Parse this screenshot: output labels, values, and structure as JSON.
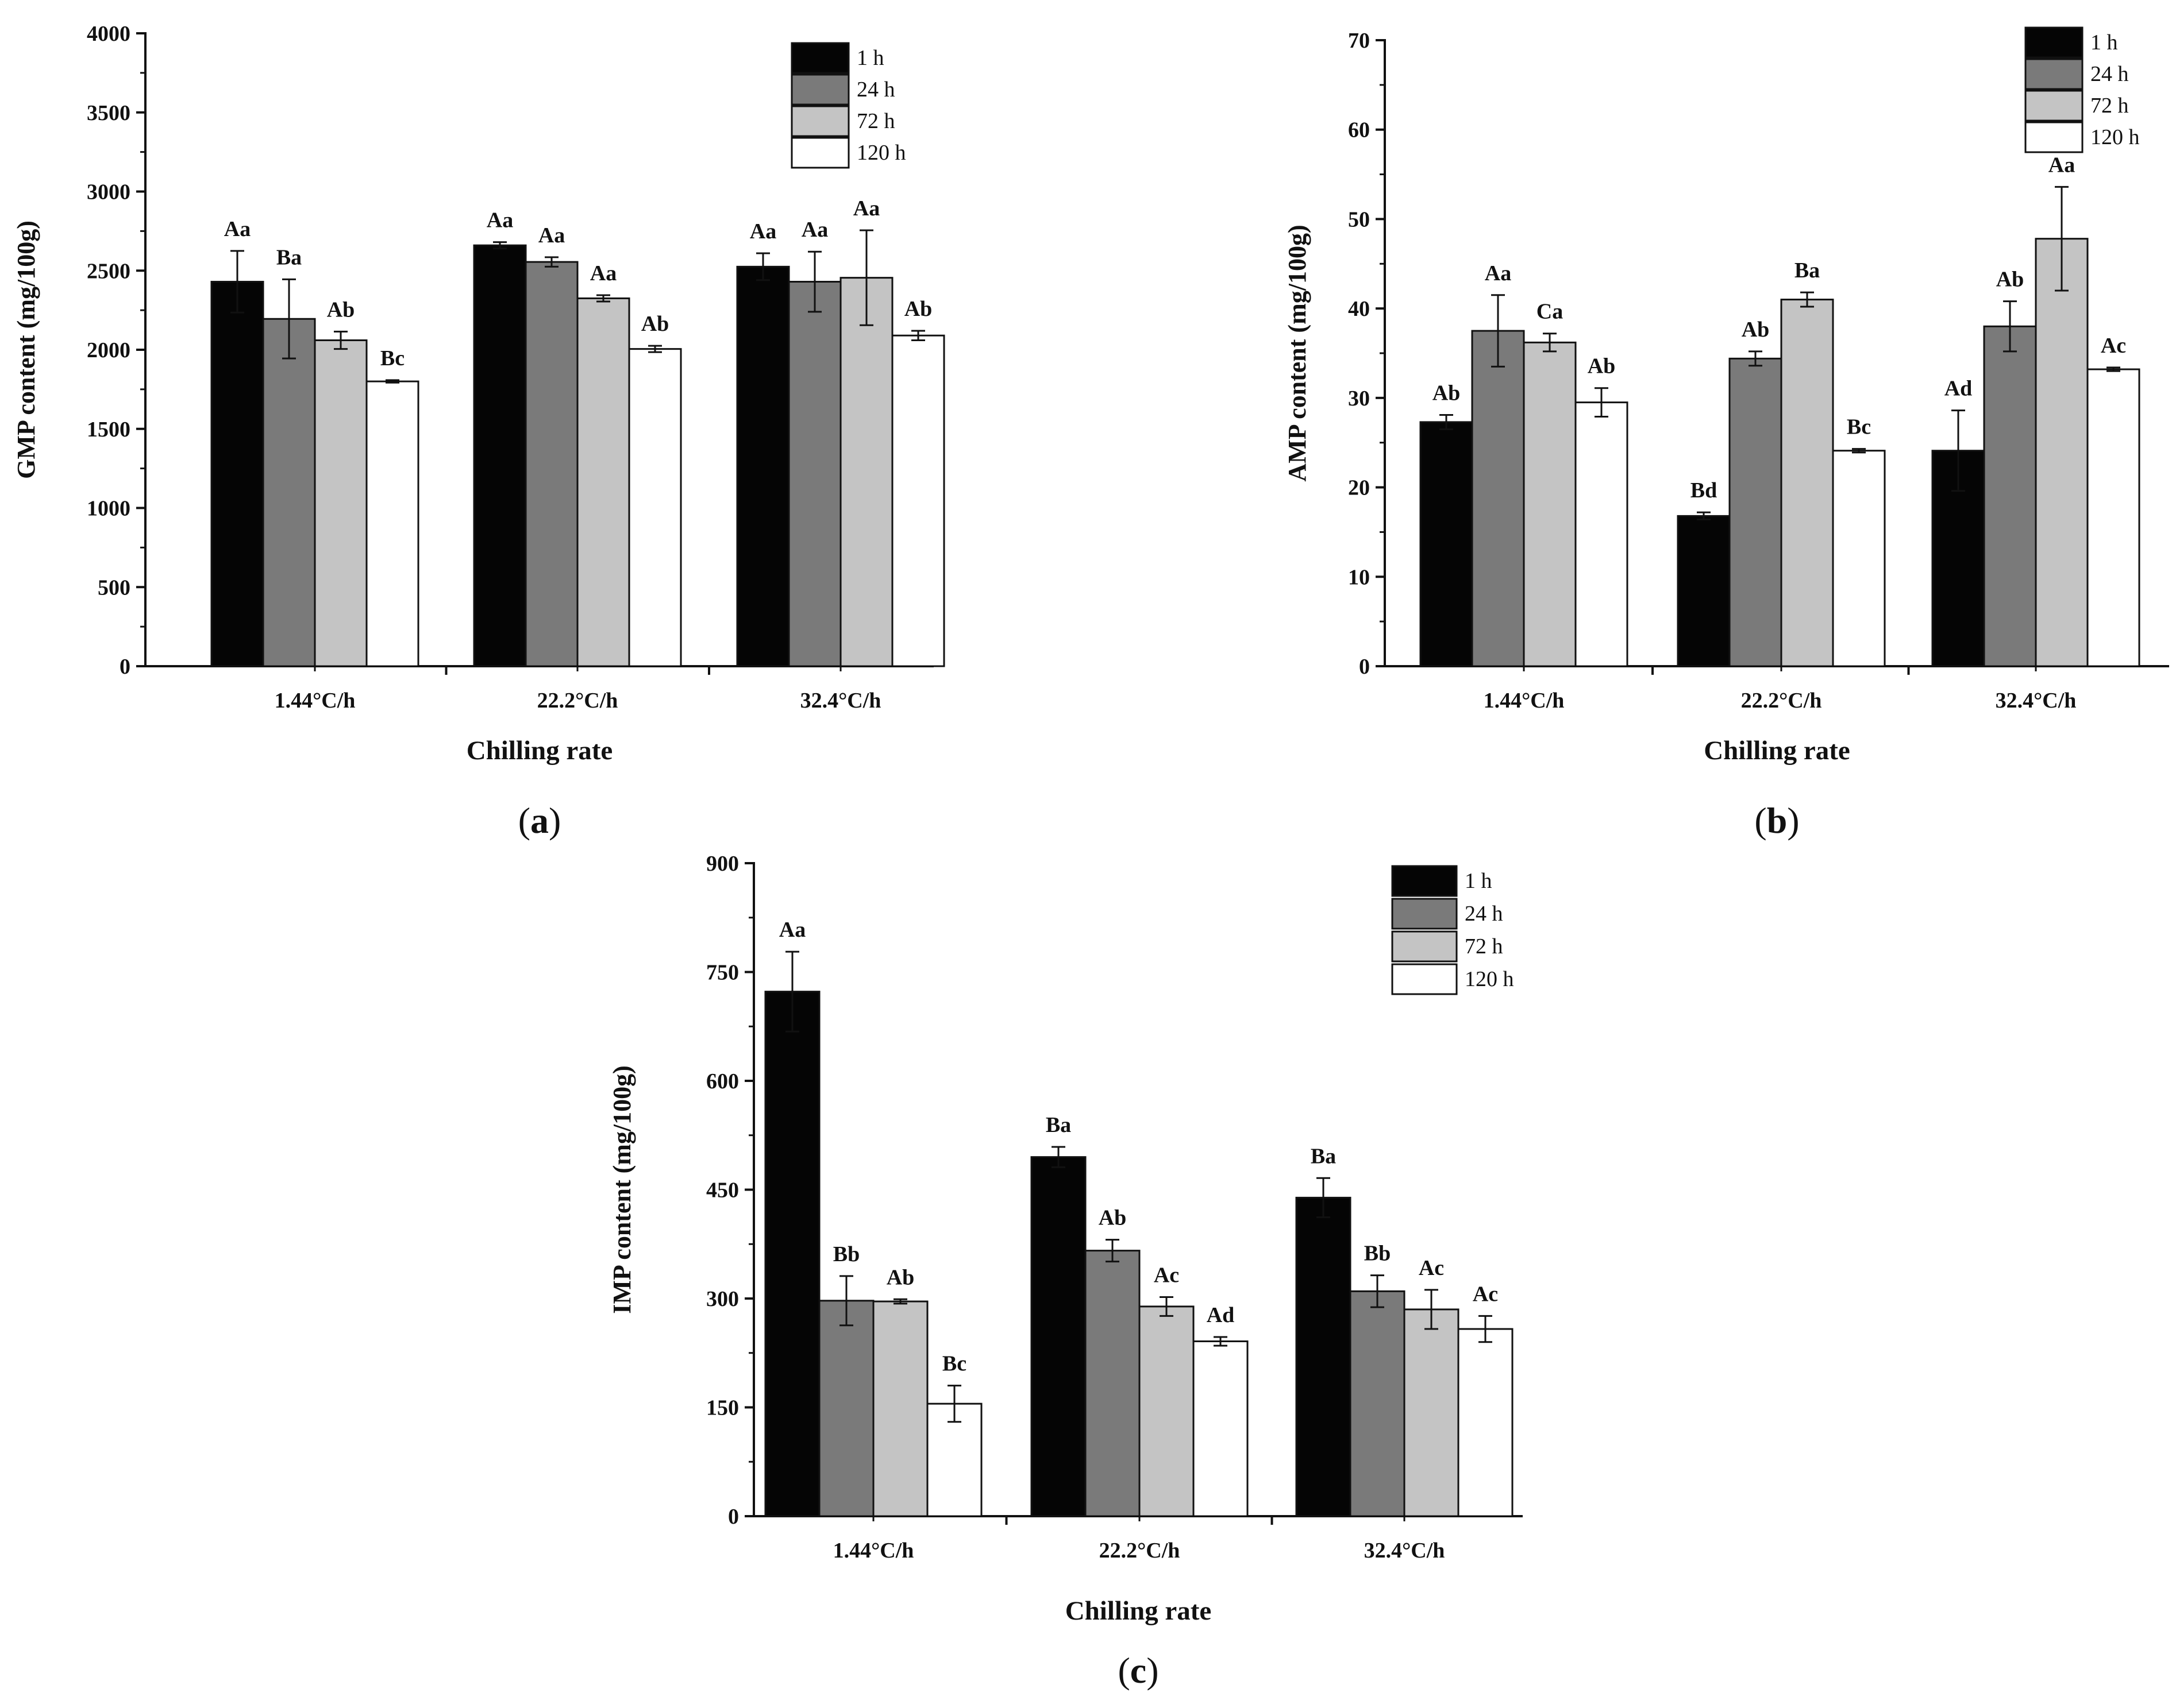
{
  "figure": {
    "x_axis_title": "Chilling rate",
    "legend_labels": [
      "1 h",
      "24 h",
      "72 h",
      "120 h"
    ],
    "series_colors": [
      "#050505",
      "#7a7a7a",
      "#c4c4c4",
      "#ffffff"
    ]
  },
  "chart_data": [
    {
      "panel": "a",
      "panel_label": {
        "open": "(",
        "letter": "a",
        "close": ")"
      },
      "type": "bar",
      "title": "",
      "xlabel": "Chilling rate",
      "ylabel": "GMP content (mg/100g)",
      "ylim": [
        0,
        4000
      ],
      "yticks": [
        0,
        500,
        1000,
        1500,
        2000,
        2500,
        3000,
        3500,
        4000
      ],
      "categories": [
        "1.44°C/h",
        "22.2°C/h",
        "32.4°C/h"
      ],
      "legend_position": "top-right",
      "series": [
        {
          "name": "1 h",
          "values": [
            2430,
            2660,
            2525
          ],
          "errors": [
            195,
            20,
            85
          ],
          "labels": [
            "Aa",
            "Aa",
            "Aa"
          ]
        },
        {
          "name": "24 h",
          "values": [
            2195,
            2555,
            2430
          ],
          "errors": [
            250,
            30,
            190
          ],
          "labels": [
            "Ba",
            "Aa",
            "Aa"
          ]
        },
        {
          "name": "72 h",
          "values": [
            2060,
            2325,
            2455
          ],
          "errors": [
            55,
            20,
            300
          ],
          "labels": [
            "Ab",
            "Aa",
            "Aa"
          ]
        },
        {
          "name": "120 h",
          "values": [
            1800,
            2005,
            2090
          ],
          "errors": [
            8,
            20,
            30
          ],
          "labels": [
            "Bc",
            "Ab",
            "Ab"
          ]
        }
      ]
    },
    {
      "panel": "b",
      "panel_label": {
        "open": "(",
        "letter": "b",
        "close": ")"
      },
      "type": "bar",
      "title": "",
      "xlabel": "Chilling rate",
      "ylabel": "AMP content (mg/100g)",
      "ylim": [
        0,
        70
      ],
      "yticks": [
        0,
        10,
        20,
        30,
        40,
        50,
        60,
        70
      ],
      "categories": [
        "1.44°C/h",
        "22.2°C/h",
        "32.4°C/h"
      ],
      "legend_position": "top-right",
      "series": [
        {
          "name": "1 h",
          "values": [
            27.3,
            16.8,
            24.1
          ],
          "errors": [
            0.8,
            0.4,
            4.5
          ],
          "labels": [
            "Ab",
            "Bd",
            "Ad"
          ]
        },
        {
          "name": "24 h",
          "values": [
            37.5,
            34.4,
            38.0
          ],
          "errors": [
            4.0,
            0.8,
            2.8
          ],
          "labels": [
            "Aa",
            "Ab",
            "Ab"
          ]
        },
        {
          "name": "72 h",
          "values": [
            36.2,
            41.0,
            47.8
          ],
          "errors": [
            1.0,
            0.8,
            5.8
          ],
          "labels": [
            "Ca",
            "Ba",
            "Aa"
          ]
        },
        {
          "name": "120 h",
          "values": [
            29.5,
            24.1,
            33.2
          ],
          "errors": [
            1.6,
            0.2,
            0.2
          ],
          "labels": [
            "Ab",
            "Bc",
            "Ac"
          ]
        }
      ]
    },
    {
      "panel": "c",
      "panel_label": {
        "open": "(",
        "letter": "c",
        "close": ")"
      },
      "type": "bar",
      "title": "",
      "xlabel": "Chilling rate",
      "ylabel": "IMP content (mg/100g)",
      "ylim": [
        0,
        900
      ],
      "yticks": [
        0,
        150,
        300,
        450,
        600,
        750,
        900
      ],
      "categories": [
        "1.44°C/h",
        "22.2°C/h",
        "32.4°C/h"
      ],
      "legend_position": "top-right",
      "series": [
        {
          "name": "1 h",
          "values": [
            723,
            495,
            439
          ],
          "errors": [
            55,
            14,
            27
          ],
          "labels": [
            "Aa",
            "Ba",
            "Ba"
          ]
        },
        {
          "name": "24 h",
          "values": [
            297,
            366,
            310
          ],
          "errors": [
            34,
            15,
            22
          ],
          "labels": [
            "Bb",
            "Ab",
            "Bb"
          ]
        },
        {
          "name": "72 h",
          "values": [
            296,
            289,
            285
          ],
          "errors": [
            3,
            13,
            27
          ],
          "labels": [
            "Ab",
            "Ac",
            "Ac"
          ]
        },
        {
          "name": "120 h",
          "values": [
            155,
            241,
            258
          ],
          "errors": [
            25,
            6,
            18
          ],
          "labels": [
            "Bc",
            "Ad",
            "Ac"
          ]
        }
      ]
    }
  ]
}
